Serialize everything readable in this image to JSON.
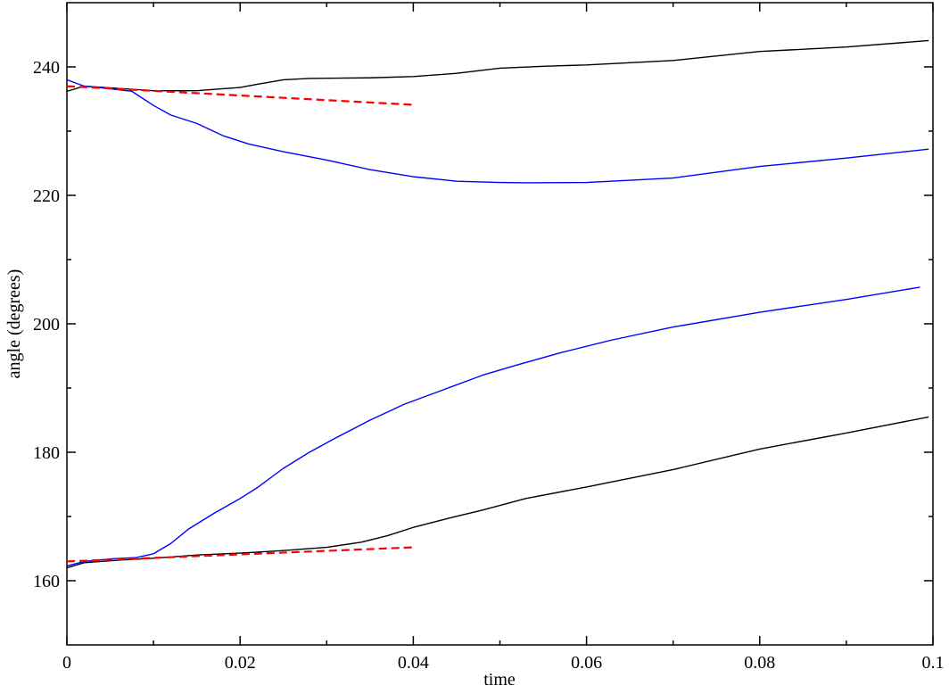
{
  "chart_data": {
    "type": "line",
    "x_label": "time",
    "y_label": "angle (degrees)",
    "xlim": [
      0,
      0.1
    ],
    "ylim": [
      150,
      250
    ],
    "xticks": [
      0,
      0.02,
      0.04,
      0.06,
      0.08,
      0.1
    ],
    "yticks": [
      160,
      180,
      200,
      220,
      240
    ],
    "xminorticks": [
      0.01,
      0.03,
      0.05,
      0.07,
      0.09
    ],
    "yminorticks": [
      170,
      190,
      210,
      230
    ],
    "series": [
      {
        "color": "#000000",
        "dashed": false,
        "x": [
          0,
          0.002,
          0.01,
          0.015,
          0.02,
          0.022,
          0.025,
          0.028,
          0.035,
          0.04,
          0.045,
          0.05,
          0.055,
          0.06,
          0.07,
          0.08,
          0.09,
          0.0995
        ],
        "values": [
          236.2,
          237,
          236.3,
          236.3,
          236.8,
          237.3,
          238,
          238.2,
          238.3,
          238.5,
          239,
          239.8,
          240.1,
          240.3,
          241,
          242.4,
          243.1,
          244.1
        ]
      },
      {
        "color": "#0000ff",
        "dashed": false,
        "x": [
          0,
          0.002,
          0.005,
          0.0075,
          0.01,
          0.012,
          0.015,
          0.018,
          0.021,
          0.025,
          0.03,
          0.035,
          0.04,
          0.045,
          0.05,
          0.053,
          0.06,
          0.07,
          0.08,
          0.09,
          0.0995
        ],
        "values": [
          238,
          237,
          236.6,
          236.2,
          234,
          232.5,
          231.2,
          229.3,
          228,
          226.8,
          225.5,
          224,
          222.9,
          222.2,
          222,
          221.95,
          222,
          222.7,
          224.5,
          225.8,
          227.2
        ]
      },
      {
        "color": "#ff0000",
        "dashed": true,
        "x": [
          0,
          0.04
        ],
        "values": [
          237,
          234.1
        ]
      },
      {
        "color": "#0000ff",
        "dashed": false,
        "x": [
          0,
          0.002,
          0.005,
          0.008,
          0.01,
          0.012,
          0.014,
          0.017,
          0.02,
          0.022,
          0.025,
          0.028,
          0.031,
          0.035,
          0.039,
          0.043,
          0.048,
          0.052,
          0.057,
          0.063,
          0.07,
          0.08,
          0.09,
          0.0985
        ],
        "values": [
          162.3,
          163,
          163.4,
          163.6,
          164.2,
          165.8,
          168,
          170.5,
          172.8,
          174.5,
          177.5,
          180,
          182.2,
          185,
          187.5,
          189.5,
          192,
          193.6,
          195.5,
          197.5,
          199.5,
          201.8,
          203.8,
          205.7
        ]
      },
      {
        "color": "#000000",
        "dashed": false,
        "x": [
          0,
          0.002,
          0.006,
          0.01,
          0.015,
          0.02,
          0.025,
          0.03,
          0.034,
          0.037,
          0.04,
          0.044,
          0.048,
          0.053,
          0.06,
          0.07,
          0.08,
          0.09,
          0.0995
        ],
        "values": [
          162,
          162.8,
          163.2,
          163.5,
          164,
          164.3,
          164.7,
          165.2,
          166,
          167,
          168.3,
          169.7,
          171,
          172.8,
          174.6,
          177.3,
          180.5,
          183,
          185.5
        ]
      },
      {
        "color": "#ff0000",
        "dashed": true,
        "x": [
          0,
          0.04
        ],
        "values": [
          163,
          165.2
        ]
      }
    ]
  }
}
